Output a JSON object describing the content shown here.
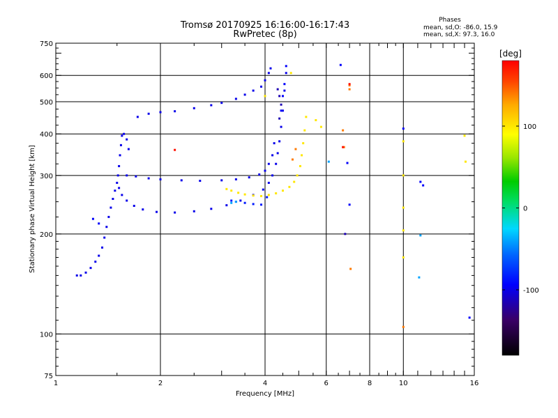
{
  "chart_data": {
    "type": "scatter",
    "title": "Tromsø 20170925 16:16:00-16:17:43",
    "subtitle": "RwPretec (8p)",
    "xlabel": "Frequency [MHz]",
    "ylabel": "Stationary phase Virtual Height [km]",
    "x_scale": "log",
    "y_scale": "log",
    "xlim": [
      1,
      16
    ],
    "ylim": [
      75,
      750
    ],
    "x_ticks": [
      1,
      2,
      4,
      6,
      8,
      10,
      16
    ],
    "y_ticks": [
      75,
      100,
      200,
      300,
      400,
      500,
      600,
      750
    ],
    "x_gridlines": [
      2,
      4,
      6,
      8,
      10
    ],
    "y_gridlines": [
      100,
      200,
      300,
      400,
      500,
      600
    ],
    "phase_header": "Phases",
    "phase_stats": [
      "mean, sd,O: -86.0, 15.9",
      "mean, sd,X:  97.3, 16.0"
    ],
    "colorbar": {
      "label": "[deg]",
      "ticks": [
        100,
        0,
        -100
      ],
      "range": [
        -180,
        180
      ]
    },
    "traces": [
      {
        "phase": -100,
        "points": [
          [
            1.15,
            150
          ],
          [
            1.18,
            150
          ],
          [
            1.22,
            153
          ],
          [
            1.26,
            158
          ],
          [
            1.3,
            165
          ],
          [
            1.33,
            172
          ],
          [
            1.36,
            182
          ],
          [
            1.38,
            195
          ],
          [
            1.4,
            210
          ],
          [
            1.42,
            225
          ],
          [
            1.44,
            240
          ],
          [
            1.46,
            255
          ],
          [
            1.48,
            270
          ],
          [
            1.5,
            285
          ],
          [
            1.51,
            300
          ],
          [
            1.52,
            320
          ],
          [
            1.53,
            345
          ],
          [
            1.54,
            370
          ],
          [
            1.55,
            395
          ],
          [
            1.57,
            400
          ],
          [
            1.6,
            385
          ],
          [
            1.62,
            360
          ]
        ]
      },
      {
        "phase": -100,
        "points": [
          [
            1.52,
            275
          ],
          [
            1.55,
            262
          ],
          [
            1.6,
            252
          ],
          [
            1.68,
            243
          ],
          [
            1.78,
            237
          ],
          [
            1.95,
            233
          ],
          [
            2.2,
            232
          ],
          [
            2.5,
            234
          ],
          [
            2.8,
            238
          ],
          [
            3.1,
            244
          ],
          [
            3.4,
            252
          ],
          [
            3.7,
            262
          ],
          [
            3.95,
            272
          ],
          [
            4.1,
            285
          ],
          [
            4.2,
            300
          ],
          [
            4.3,
            325
          ],
          [
            4.35,
            350
          ],
          [
            4.4,
            380
          ],
          [
            4.45,
            420
          ],
          [
            4.5,
            470
          ],
          [
            4.55,
            540
          ],
          [
            4.6,
            610
          ]
        ]
      },
      {
        "phase": -100,
        "points": [
          [
            1.6,
            300
          ],
          [
            1.7,
            298
          ],
          [
            1.85,
            294
          ],
          [
            2.0,
            292
          ],
          [
            2.3,
            290
          ],
          [
            2.6,
            289
          ],
          [
            3.0,
            290
          ],
          [
            3.3,
            292
          ],
          [
            3.6,
            296
          ],
          [
            3.85,
            302
          ],
          [
            4.0,
            310
          ],
          [
            4.1,
            325
          ],
          [
            4.2,
            345
          ],
          [
            4.25,
            375
          ]
        ]
      },
      {
        "phase": -100,
        "points": [
          [
            1.72,
            450
          ],
          [
            1.85,
            460
          ],
          [
            2.0,
            465
          ],
          [
            2.2,
            468
          ],
          [
            2.5,
            478
          ],
          [
            2.8,
            488
          ],
          [
            3.0,
            496
          ],
          [
            3.3,
            510
          ],
          [
            3.5,
            525
          ],
          [
            3.7,
            540
          ],
          [
            3.9,
            555
          ],
          [
            4.0,
            580
          ],
          [
            4.1,
            610
          ],
          [
            4.15,
            630
          ]
        ]
      },
      {
        "phase": -95,
        "points": [
          [
            1.28,
            222
          ],
          [
            1.33,
            215
          ],
          [
            4.45,
            470
          ],
          [
            4.5,
            520
          ],
          [
            4.55,
            565
          ],
          [
            4.6,
            640
          ],
          [
            6.6,
            645
          ],
          [
            6.9,
            327
          ],
          [
            7.0,
            245
          ],
          [
            10.0,
            415
          ],
          [
            11.2,
            287
          ],
          [
            11.4,
            280
          ],
          [
            15.5,
            112
          ]
        ]
      },
      {
        "phase": -115,
        "points": [
          [
            4.35,
            545
          ],
          [
            4.4,
            520
          ],
          [
            4.45,
            490
          ],
          [
            4.4,
            445
          ],
          [
            6.8,
            200
          ]
        ]
      },
      {
        "phase": -85,
        "points": [
          [
            3.2,
            252
          ],
          [
            3.3,
            250
          ],
          [
            3.5,
            248
          ],
          [
            3.7,
            246
          ],
          [
            3.9,
            245
          ],
          [
            4.05,
            258
          ]
        ]
      },
      {
        "phase": -40,
        "points": [
          [
            3.2,
            248
          ],
          [
            3.3,
            250
          ],
          [
            6.1,
            330
          ],
          [
            11.2,
            198
          ],
          [
            11.1,
            148
          ]
        ]
      },
      {
        "phase": 100,
        "points": [
          [
            3.1,
            273
          ],
          [
            3.2,
            270
          ],
          [
            3.35,
            266
          ],
          [
            3.5,
            263
          ],
          [
            3.7,
            261
          ],
          [
            3.9,
            260
          ],
          [
            4.1,
            262
          ],
          [
            4.3,
            265
          ],
          [
            4.5,
            270
          ],
          [
            4.7,
            277
          ],
          [
            4.85,
            287
          ],
          [
            4.95,
            300
          ],
          [
            5.05,
            320
          ],
          [
            5.1,
            345
          ],
          [
            5.15,
            375
          ],
          [
            5.2,
            410
          ],
          [
            5.25,
            450
          ],
          [
            4.75,
            610
          ],
          [
            4.0,
            520
          ],
          [
            5.6,
            440
          ],
          [
            5.8,
            420
          ],
          [
            10.0,
            380
          ],
          [
            10.0,
            300
          ],
          [
            10.0,
            240
          ],
          [
            10.0,
            205
          ],
          [
            10.0,
            170
          ],
          [
            15.0,
            395
          ],
          [
            15.1,
            330
          ]
        ]
      },
      {
        "phase": 140,
        "points": [
          [
            6.7,
            410
          ],
          [
            6.75,
            365
          ],
          [
            7.0,
            560
          ],
          [
            7.0,
            545
          ],
          [
            7.05,
            157
          ],
          [
            10.0,
            105
          ],
          [
            4.8,
            335
          ],
          [
            4.9,
            360
          ]
        ]
      },
      {
        "phase": 175,
        "points": [
          [
            6.7,
            365
          ],
          [
            7.0,
            565
          ],
          [
            2.2,
            358
          ]
        ]
      }
    ]
  }
}
